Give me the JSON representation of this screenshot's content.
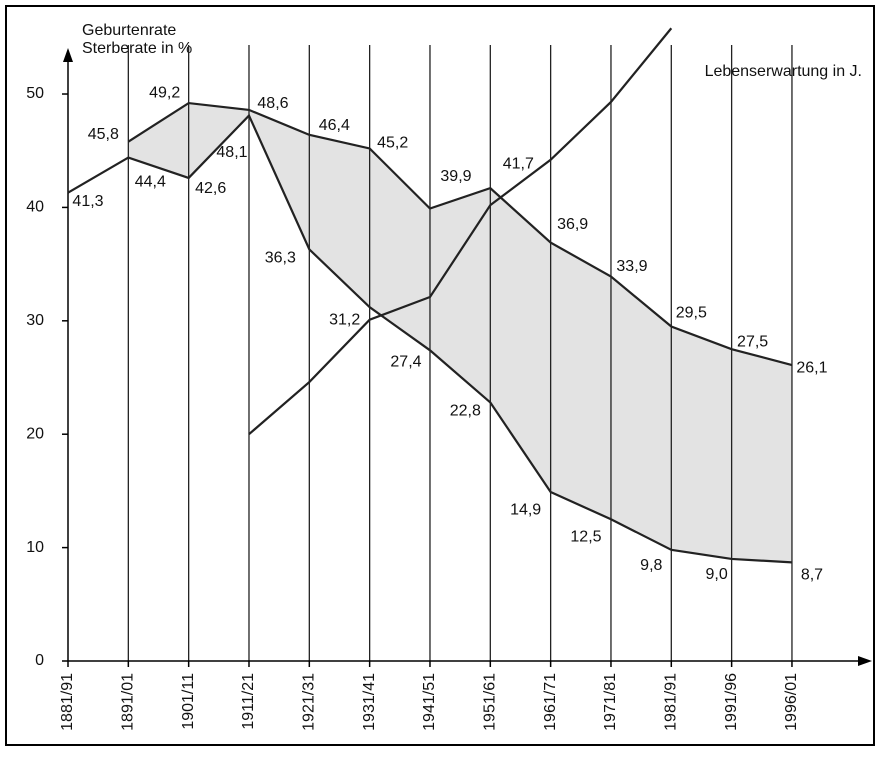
{
  "chart_data": {
    "type": "line",
    "ylabel_lines": [
      "Geburtenrate",
      "Sterberate in %"
    ],
    "categories": [
      "1881/91",
      "1891/01",
      "1901/11",
      "1911/21",
      "1921/31",
      "1931/41",
      "1941/51",
      "1951/61",
      "1961/71",
      "1971/81",
      "1981/91",
      "1991/96",
      "1996/01"
    ],
    "series": [
      {
        "color": "#222222",
        "values": [
          null,
          45.8,
          49.2,
          48.6,
          46.4,
          45.2,
          39.9,
          41.7,
          36.9,
          33.9,
          29.5,
          27.5,
          26.1
        ],
        "value_labels": [
          null,
          "45,8",
          "49,2",
          "48,6",
          "46,4",
          "45,2",
          "39,9",
          "41,7",
          "36,9",
          "33,9",
          "29,5",
          "27,5",
          "26,1"
        ]
      },
      {
        "color": "#222222",
        "values": [
          41.3,
          44.4,
          42.6,
          48.1,
          36.3,
          31.2,
          27.4,
          22.8,
          14.9,
          12.5,
          9.8,
          9.0,
          8.7
        ],
        "value_labels": [
          "41,3",
          "44,4",
          "42,6",
          "48,1",
          "36,3",
          "31,2",
          "27,4",
          "22,8",
          "14,9",
          "12,5",
          "9,8",
          "9,0",
          "8,7"
        ]
      },
      {
        "name": "Lebenserwartung in J.",
        "color": "#222222",
        "values": [
          null,
          null,
          null,
          20,
          24.6,
          30.1,
          32.1,
          40.2,
          44.2,
          49.3,
          55.8,
          null,
          null
        ]
      }
    ],
    "fill_between_color": "#e3e3e3",
    "ylim": [
      0,
      53
    ],
    "yticks": [
      0,
      10,
      20,
      30,
      40,
      50
    ],
    "grid": true
  }
}
